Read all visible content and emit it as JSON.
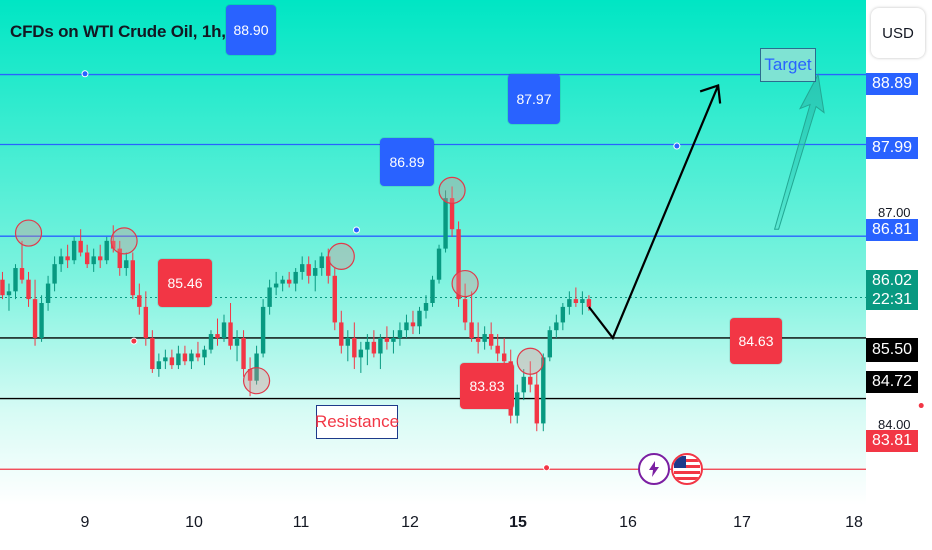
{
  "header": {
    "title": "CFDs on WTI Crude Oil, 1h, TVC"
  },
  "toolbar": {
    "currency": "USD"
  },
  "chart_data": {
    "type": "candlestick",
    "ylim": [
      83.35,
      89.85
    ],
    "x_ticks": [
      "9",
      "10",
      "11",
      "12",
      "15",
      "16",
      "17",
      "18"
    ],
    "bold_x_tick": "15",
    "price_line": 86.02,
    "countdown": "22:31",
    "axis_labels": [
      {
        "value": 88.89,
        "text": "88.89",
        "color": "blue"
      },
      {
        "value": 87.99,
        "text": "87.99",
        "color": "blue"
      },
      {
        "value": 86.81,
        "text": "86.81",
        "color": "blue"
      },
      {
        "value": 86.02,
        "text": "86.02",
        "color": "green"
      },
      {
        "value": 85.5,
        "text": "85.50",
        "color": "black"
      },
      {
        "value": 84.72,
        "text": "84.72",
        "color": "black"
      },
      {
        "value": 83.81,
        "text": "83.81",
        "color": "red"
      }
    ],
    "faint_ticks": [
      "87.00",
      "84.00"
    ],
    "horizontal_levels": [
      {
        "value": 88.89,
        "color": "#2962ff"
      },
      {
        "value": 87.99,
        "color": "#2962ff"
      },
      {
        "value": 86.81,
        "color": "#2962ff"
      },
      {
        "value": 85.5,
        "color": "#000000"
      },
      {
        "value": 84.72,
        "color": "#000000"
      },
      {
        "value": 83.81,
        "color": "#f23645"
      }
    ],
    "callouts": [
      {
        "text": "88.90",
        "color": "blue",
        "x": 9.0,
        "value": 88.9
      },
      {
        "text": "87.97",
        "color": "blue",
        "x": 14.45,
        "value": 87.97
      },
      {
        "text": "86.89",
        "color": "blue",
        "x": 11.5,
        "value": 86.89
      },
      {
        "text": "85.46",
        "color": "red",
        "x": 9.45,
        "value": 85.46
      },
      {
        "text": "83.83",
        "color": "red",
        "x": 13.25,
        "value": 83.83
      },
      {
        "text": "84.63",
        "color": "red",
        "x": 16.7,
        "value": 84.63
      }
    ],
    "annotations": [
      {
        "text": "Target"
      },
      {
        "text": "Resistance"
      }
    ],
    "candles": [
      [
        8.0,
        85.6,
        85.85,
        85.45,
        85.8
      ],
      [
        8.06,
        85.8,
        86.05,
        85.7,
        85.95
      ],
      [
        8.12,
        85.95,
        86.3,
        85.85,
        86.15
      ],
      [
        8.18,
        86.15,
        86.4,
        86.0,
        86.25
      ],
      [
        8.24,
        86.25,
        86.35,
        86.0,
        86.05
      ],
      [
        8.3,
        86.05,
        86.2,
        85.85,
        86.1
      ],
      [
        8.36,
        86.1,
        86.45,
        86.0,
        86.4
      ],
      [
        8.42,
        86.4,
        86.75,
        86.2,
        86.25
      ],
      [
        8.48,
        86.25,
        86.35,
        85.9,
        86.0
      ],
      [
        8.54,
        86.0,
        86.25,
        85.4,
        85.5
      ],
      [
        8.6,
        85.5,
        86.05,
        85.45,
        85.95
      ],
      [
        8.66,
        85.95,
        86.3,
        85.85,
        86.2
      ],
      [
        8.72,
        86.2,
        86.55,
        86.1,
        86.45
      ],
      [
        8.78,
        86.45,
        86.65,
        86.35,
        86.55
      ],
      [
        8.84,
        86.55,
        86.7,
        86.4,
        86.5
      ],
      [
        8.9,
        86.5,
        86.8,
        86.45,
        86.75
      ],
      [
        8.96,
        86.75,
        86.9,
        86.55,
        86.6
      ],
      [
        9.02,
        86.6,
        86.7,
        86.4,
        86.45
      ],
      [
        9.08,
        86.45,
        86.65,
        86.35,
        86.55
      ],
      [
        9.14,
        86.55,
        86.7,
        86.4,
        86.5
      ],
      [
        9.2,
        86.5,
        86.8,
        86.45,
        86.75
      ],
      [
        9.26,
        86.75,
        86.95,
        86.6,
        86.65
      ],
      [
        9.32,
        86.65,
        86.75,
        86.3,
        86.4
      ],
      [
        9.38,
        86.4,
        86.6,
        86.3,
        86.5
      ],
      [
        9.44,
        86.5,
        86.6,
        86.0,
        86.05
      ],
      [
        9.5,
        86.05,
        86.2,
        85.8,
        85.9
      ],
      [
        9.56,
        85.9,
        86.1,
        85.4,
        85.5
      ],
      [
        9.62,
        85.5,
        85.6,
        85.05,
        85.1
      ],
      [
        9.68,
        85.1,
        85.3,
        85.0,
        85.2
      ],
      [
        9.74,
        85.2,
        85.35,
        85.1,
        85.25
      ],
      [
        9.8,
        85.25,
        85.35,
        85.1,
        85.15
      ],
      [
        9.86,
        85.15,
        85.4,
        85.1,
        85.3
      ],
      [
        9.92,
        85.3,
        85.4,
        85.15,
        85.2
      ],
      [
        9.98,
        85.2,
        85.35,
        85.1,
        85.3
      ],
      [
        10.04,
        85.3,
        85.45,
        85.2,
        85.25
      ],
      [
        10.1,
        85.25,
        85.4,
        85.15,
        85.35
      ],
      [
        10.16,
        85.35,
        85.6,
        85.3,
        85.55
      ],
      [
        10.22,
        85.55,
        85.75,
        85.4,
        85.5
      ],
      [
        10.28,
        85.5,
        85.8,
        85.45,
        85.7
      ],
      [
        10.34,
        85.7,
        85.95,
        85.35,
        85.4
      ],
      [
        10.4,
        85.4,
        85.6,
        85.2,
        85.5
      ],
      [
        10.46,
        85.5,
        85.6,
        85.0,
        85.1
      ],
      [
        10.52,
        85.1,
        85.25,
        84.75,
        84.95
      ],
      [
        10.58,
        84.95,
        85.4,
        84.9,
        85.3
      ],
      [
        10.64,
        85.3,
        86.0,
        85.25,
        85.9
      ],
      [
        10.7,
        85.9,
        86.25,
        85.8,
        86.15
      ],
      [
        10.76,
        86.15,
        86.35,
        86.05,
        86.2
      ],
      [
        10.82,
        86.2,
        86.3,
        86.1,
        86.25
      ],
      [
        10.88,
        86.25,
        86.35,
        86.15,
        86.2
      ],
      [
        10.94,
        86.2,
        86.4,
        86.1,
        86.35
      ],
      [
        11.0,
        86.35,
        86.55,
        86.25,
        86.45
      ],
      [
        11.06,
        86.45,
        86.55,
        86.2,
        86.3
      ],
      [
        11.12,
        86.3,
        86.5,
        86.1,
        86.4
      ],
      [
        11.18,
        86.4,
        86.6,
        86.3,
        86.55
      ],
      [
        11.24,
        86.55,
        86.65,
        86.2,
        86.3
      ],
      [
        11.3,
        86.3,
        86.4,
        85.6,
        85.7
      ],
      [
        11.36,
        85.7,
        85.85,
        85.3,
        85.4
      ],
      [
        11.42,
        85.4,
        85.6,
        85.2,
        85.5
      ],
      [
        11.48,
        85.5,
        85.7,
        85.1,
        85.25
      ],
      [
        11.54,
        85.25,
        85.45,
        85.05,
        85.35
      ],
      [
        11.6,
        85.35,
        85.55,
        85.15,
        85.45
      ],
      [
        11.66,
        85.45,
        85.6,
        85.25,
        85.3
      ],
      [
        11.72,
        85.3,
        85.55,
        85.1,
        85.5
      ],
      [
        11.78,
        85.5,
        85.65,
        85.35,
        85.45
      ],
      [
        11.84,
        85.45,
        85.6,
        85.3,
        85.5
      ],
      [
        11.9,
        85.5,
        85.7,
        85.4,
        85.6
      ],
      [
        11.96,
        85.6,
        85.8,
        85.5,
        85.7
      ],
      [
        12.02,
        85.7,
        85.85,
        85.55,
        85.65
      ],
      [
        12.08,
        85.65,
        85.9,
        85.55,
        85.85
      ],
      [
        12.14,
        85.85,
        86.05,
        85.75,
        85.95
      ],
      [
        12.2,
        85.95,
        86.3,
        85.9,
        86.25
      ],
      [
        12.26,
        86.25,
        86.7,
        86.2,
        86.65
      ],
      [
        12.32,
        86.65,
        87.4,
        86.6,
        87.3
      ],
      [
        12.38,
        87.3,
        87.45,
        86.8,
        86.9
      ],
      [
        12.44,
        86.9,
        87.0,
        85.9,
        86.0
      ],
      [
        12.5,
        86.0,
        86.2,
        85.6,
        85.7
      ],
      [
        12.56,
        85.7,
        86.1,
        85.45,
        85.5
      ],
      [
        12.62,
        85.5,
        85.7,
        85.3,
        85.45
      ],
      [
        12.68,
        85.45,
        85.65,
        85.35,
        85.55
      ],
      [
        12.74,
        85.55,
        85.7,
        85.35,
        85.4
      ],
      [
        12.8,
        85.4,
        85.55,
        85.2,
        85.3
      ],
      [
        12.86,
        85.3,
        85.5,
        85.1,
        85.2
      ],
      [
        12.92,
        85.2,
        85.35,
        84.4,
        84.5
      ],
      [
        12.98,
        84.5,
        84.9,
        84.4,
        84.8
      ],
      [
        13.04,
        84.8,
        85.1,
        84.7,
        85.0
      ],
      [
        13.1,
        85.0,
        85.2,
        84.8,
        84.9
      ],
      [
        13.16,
        84.9,
        85.05,
        84.3,
        84.4
      ],
      [
        13.22,
        84.4,
        85.3,
        84.3,
        85.25
      ],
      [
        13.28,
        85.25,
        85.65,
        85.2,
        85.6
      ],
      [
        13.34,
        85.6,
        85.8,
        85.5,
        85.7
      ],
      [
        13.4,
        85.7,
        85.95,
        85.6,
        85.9
      ],
      [
        13.46,
        85.9,
        86.1,
        85.8,
        86.0
      ],
      [
        13.52,
        86.0,
        86.15,
        85.9,
        85.95
      ],
      [
        13.58,
        85.95,
        86.1,
        85.8,
        86.0
      ],
      [
        13.64,
        86.0,
        86.05,
        85.85,
        85.9
      ]
    ]
  }
}
